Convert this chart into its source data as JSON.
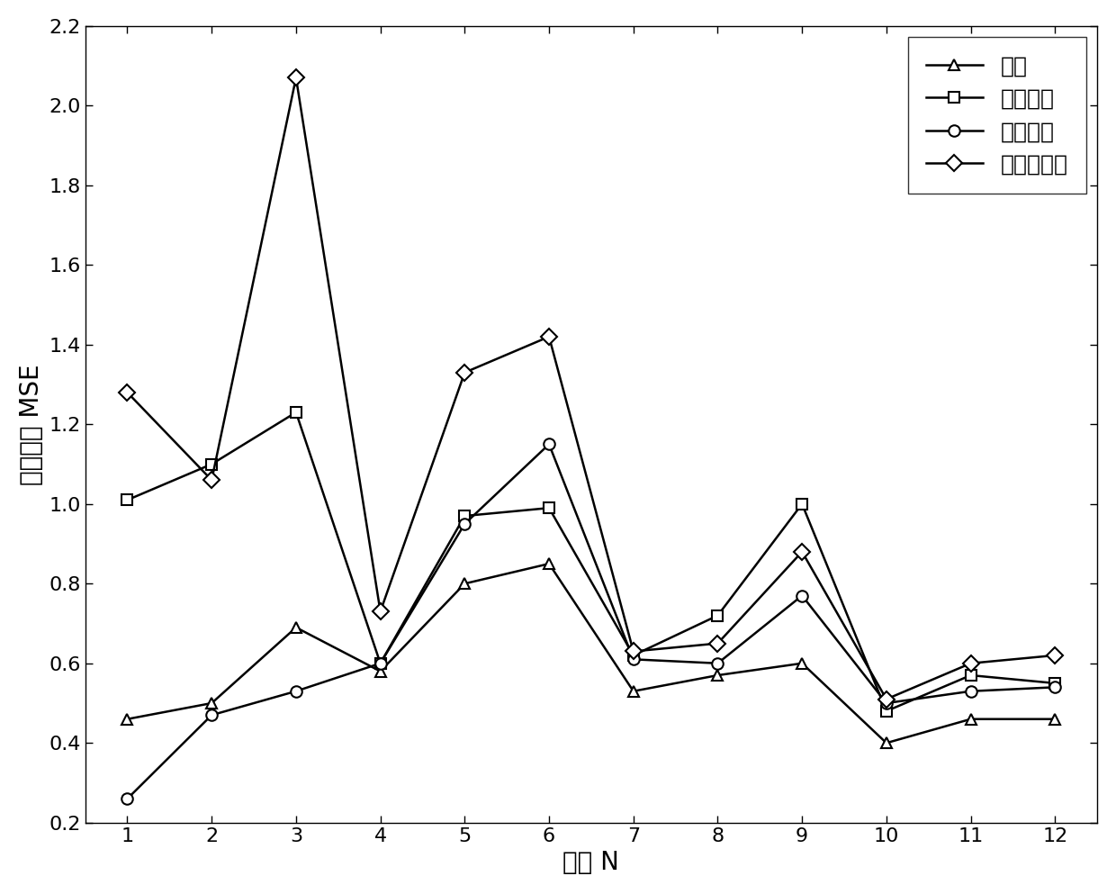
{
  "x": [
    1,
    2,
    3,
    4,
    5,
    6,
    7,
    8,
    9,
    10,
    11,
    12
  ],
  "normal": [
    0.46,
    0.5,
    0.69,
    0.58,
    0.8,
    0.85,
    0.53,
    0.57,
    0.6,
    0.4,
    0.46,
    0.46
  ],
  "inner_fault": [
    1.01,
    1.1,
    1.23,
    0.6,
    0.97,
    0.99,
    0.62,
    0.72,
    1.0,
    0.48,
    0.57,
    0.55
  ],
  "outer_fault": [
    0.26,
    0.47,
    0.53,
    0.6,
    0.95,
    1.15,
    0.61,
    0.6,
    0.77,
    0.5,
    0.53,
    0.54
  ],
  "rolling_fault": [
    1.28,
    1.06,
    2.07,
    0.73,
    1.33,
    1.42,
    0.63,
    0.65,
    0.88,
    0.51,
    0.6,
    0.62
  ],
  "xlabel": "个数 N",
  "ylabel": "多尺度熵 MSE",
  "xlim": [
    0.5,
    12.5
  ],
  "ylim": [
    0.2,
    2.2
  ],
  "yticks": [
    0.2,
    0.4,
    0.6,
    0.8,
    1.0,
    1.2,
    1.4,
    1.6,
    1.8,
    2.0,
    2.2
  ],
  "xticks": [
    1,
    2,
    3,
    4,
    5,
    6,
    7,
    8,
    9,
    10,
    11,
    12
  ],
  "legend_labels": [
    "正常",
    "内圈故障",
    "外圈故障",
    "滚动体故障"
  ],
  "line_color": "#000000",
  "marker_size": 9,
  "linewidth": 1.8,
  "tick_fontsize": 16,
  "label_fontsize": 20,
  "legend_fontsize": 18
}
